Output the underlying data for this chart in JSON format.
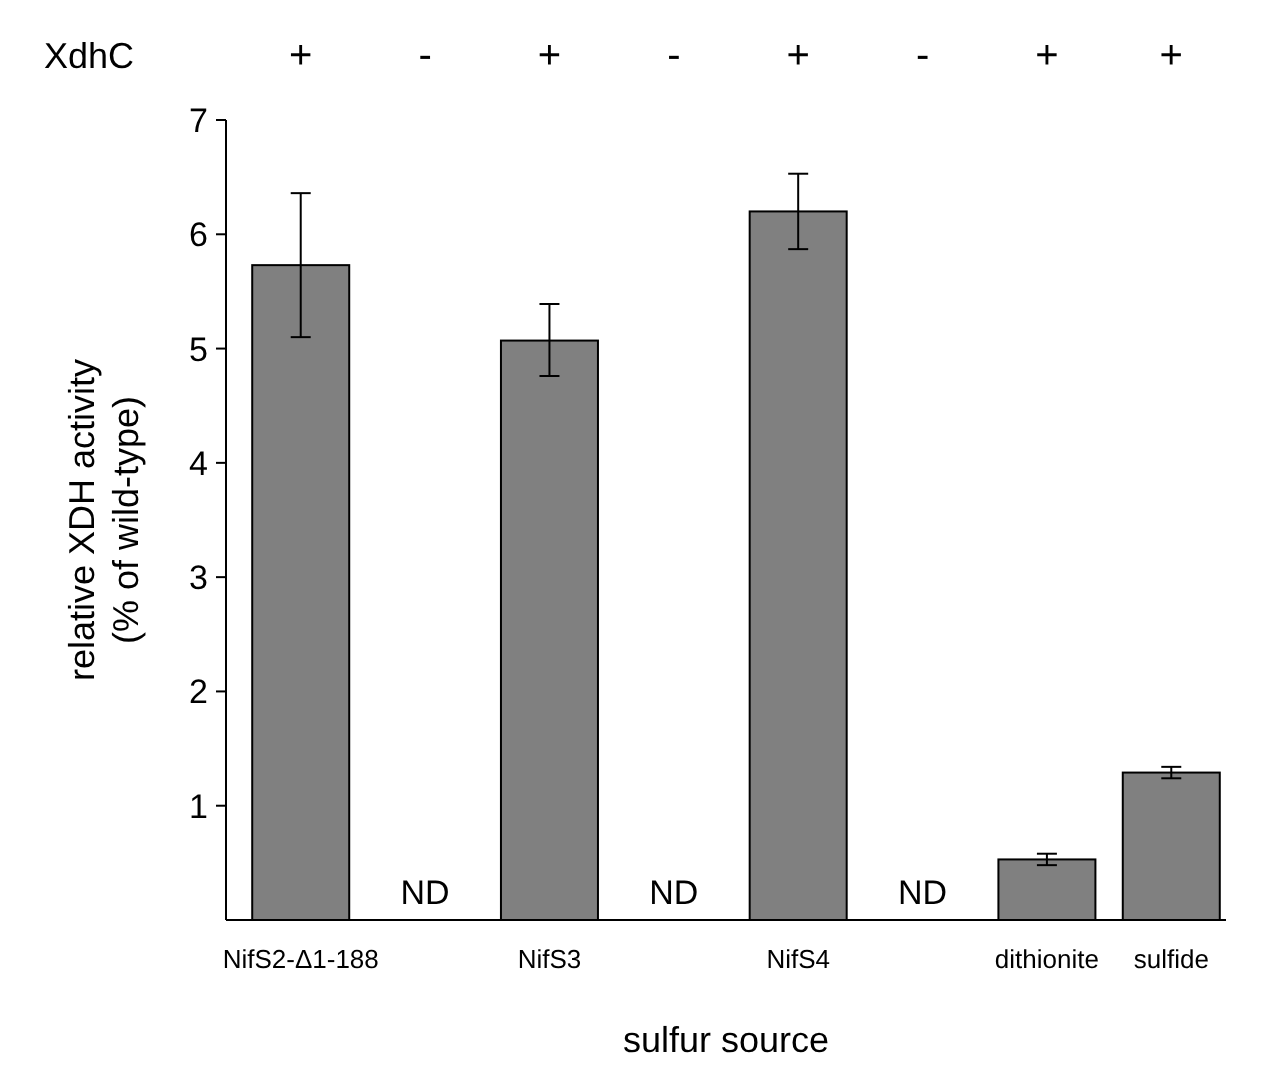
{
  "chart_data": {
    "type": "bar",
    "xlabel": "sulfur source",
    "ylabel": "relative XDH activity\n(% of wild-type)",
    "categories": [
      "NifS2-Δ1-188",
      null,
      "NifS3",
      null,
      "NifS4",
      null,
      "dithionite",
      "sulfide"
    ],
    "values": [
      5.73,
      null,
      5.07,
      null,
      6.2,
      null,
      0.53,
      1.29
    ],
    "errors": [
      [
        5.1,
        6.36
      ],
      null,
      [
        4.76,
        5.39
      ],
      null,
      [
        5.87,
        6.53
      ],
      null,
      [
        0.48,
        0.58
      ],
      [
        1.24,
        1.34
      ]
    ],
    "value_labels": [
      null,
      "ND",
      null,
      "ND",
      null,
      "ND",
      null,
      null
    ],
    "color": "#808080",
    "ylim": [
      0,
      7
    ],
    "yticks": [
      1,
      2,
      3,
      4,
      5,
      6,
      7
    ],
    "grid": false,
    "annotations": [
      "XdhC",
      "+",
      "-",
      "+",
      "-",
      "+",
      "-",
      "+",
      "+"
    ]
  }
}
